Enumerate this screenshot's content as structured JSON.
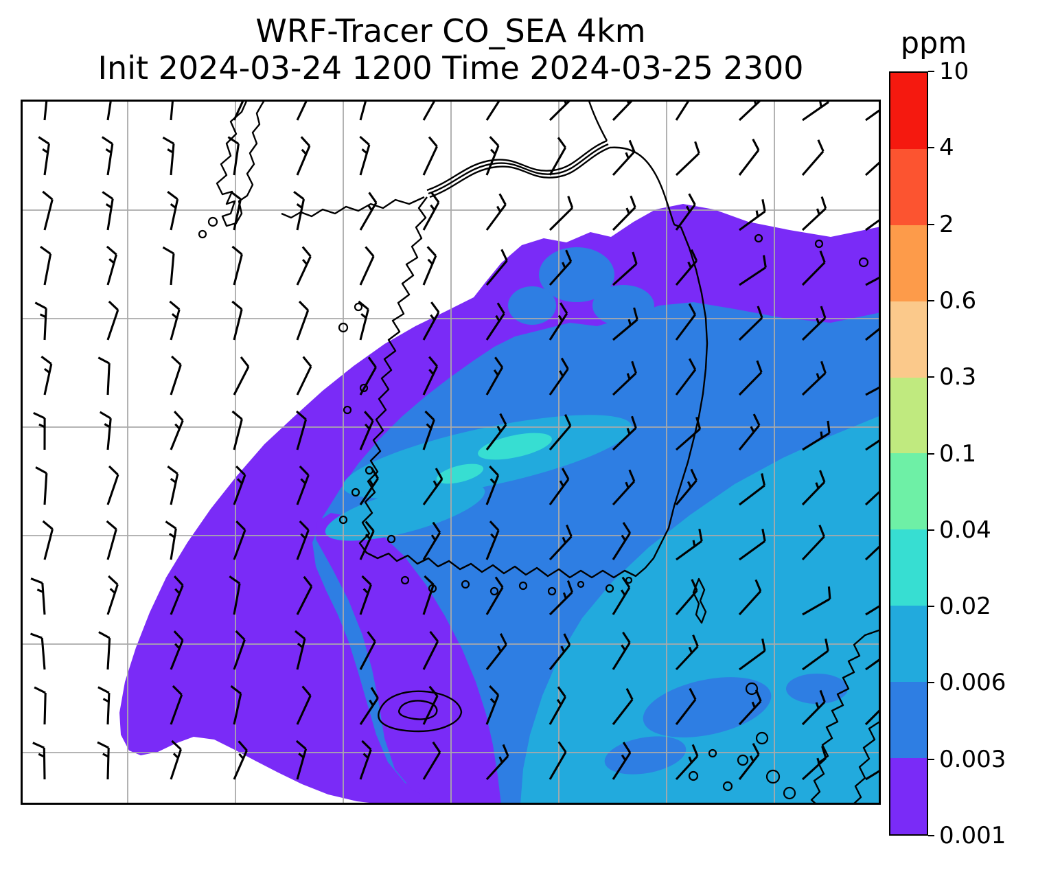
{
  "title": {
    "line1": "WRF-Tracer CO_SEA 4km",
    "line2": "Init 2024-03-24 1200 Time 2024-03-25 2300"
  },
  "colorbar": {
    "label": "ppm",
    "tick_labels": [
      "10",
      "4",
      "2",
      "0.6",
      "0.3",
      "0.1",
      "0.04",
      "0.02",
      "0.006",
      "0.003",
      "0.001"
    ],
    "segment_colors_top_to_bottom": [
      "#f5190f",
      "#fc5430",
      "#fd9b4a",
      "#fbc98b",
      "#c0ea7f",
      "#6ef0a6",
      "#37ded2",
      "#22aadd",
      "#2e7ee3",
      "#7a2bf7"
    ]
  },
  "chart_data": {
    "type": "heatmap",
    "title": "WRF-Tracer CO_SEA 4km",
    "subtitle": "Init 2024-03-24 1200 Time 2024-03-25 2300",
    "model": "WRF-Tracer",
    "variable": "CO_SEA tracer concentration",
    "resolution": "4km",
    "init_time": "2024-03-24 1200",
    "valid_time": "2024-03-25 2300",
    "units": "ppm",
    "levels": [
      0.001,
      0.003,
      0.006,
      0.02,
      0.04,
      0.1,
      0.3,
      0.6,
      2,
      4,
      10
    ],
    "level_colors_low_to_high": [
      "#7a2bf7",
      "#2e7ee3",
      "#22aadd",
      "#37ded2",
      "#6ef0a6",
      "#c0ea7f",
      "#fbc98b",
      "#fd9b4a",
      "#fc5430",
      "#f5190f"
    ],
    "legend_position": "right",
    "grid": true,
    "grid_color": "#aaaaaa",
    "overlays": [
      "coastlines (Korean peninsula, Jeju, Tsushima, Kyushu)",
      "wind-barbs",
      "lat-lon-grid"
    ],
    "visible_filled_levels": [
      "0.001-0.003 ppm (violet): broad outer band from northwest edge of plume, upper-right band, and tongue through bottom-center",
      "0.003-0.006 ppm (blue): wide band over central Korea",
      "0.006-0.02 ppm (light blue): large area over southeast / Korea Strait",
      "0.02-0.04 ppm (turquoise): small streaks in center of plume"
    ],
    "background": "white = below 0.001 ppm (northwest half of domain)",
    "wind": {
      "type": "barbs",
      "flow": "north-northeasterly to northeasterly over whole domain",
      "approx_speed_kt": "10-15"
    }
  }
}
